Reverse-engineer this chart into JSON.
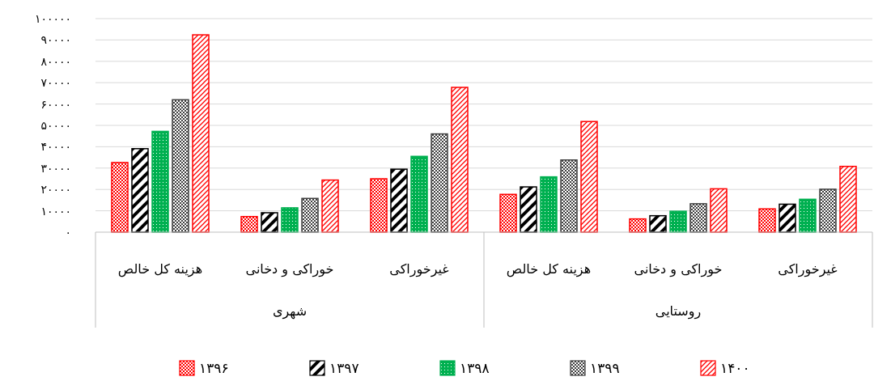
{
  "chart_data": {
    "type": "bar",
    "categories": [
      "هزینه کل خالص",
      "خوراکی و دخانی",
      "غیرخوراکی",
      "هزینه کل خالص",
      "خوراکی و دخانی",
      "غیرخوراکی"
    ],
    "series": [
      {
        "name": "۱۳۹۶",
        "color": "#ff0000",
        "values": [
          32600,
          7300,
          25000,
          17700,
          6200,
          10900
        ]
      },
      {
        "name": "۱۳۹۷",
        "color": "#000000",
        "values": [
          39100,
          9100,
          29500,
          21200,
          7700,
          13100
        ]
      },
      {
        "name": "۱۳۹۸",
        "color": "#00b050",
        "values": [
          47200,
          11400,
          35500,
          25900,
          9800,
          15400
        ]
      },
      {
        "name": "۱۳۹۹",
        "color": "#404040",
        "values": [
          62000,
          15800,
          46000,
          33800,
          13300,
          20100
        ]
      },
      {
        "name": "۱۴۰۰",
        "color": "#ff0000",
        "values": [
          92400,
          24400,
          67800,
          51800,
          20300,
          30800
        ]
      }
    ],
    "ylim": [
      0,
      100000
    ],
    "yticks": [
      {
        "value": 0,
        "label": "۰"
      },
      {
        "value": 10000,
        "label": "۱۰۰۰۰"
      },
      {
        "value": 20000,
        "label": "۲۰۰۰۰"
      },
      {
        "value": 30000,
        "label": "۳۰۰۰۰"
      },
      {
        "value": 40000,
        "label": "۴۰۰۰۰"
      },
      {
        "value": 50000,
        "label": "۵۰۰۰۰"
      },
      {
        "value": 60000,
        "label": "۶۰۰۰۰"
      },
      {
        "value": 70000,
        "label": "۷۰۰۰۰"
      },
      {
        "value": 80000,
        "label": "۸۰۰۰۰"
      },
      {
        "value": 90000,
        "label": "۹۰۰۰۰"
      },
      {
        "value": 100000,
        "label": "۱۰۰۰۰۰"
      }
    ],
    "annotations": [
      "شهری",
      "روستایی"
    ],
    "grid": "y",
    "legend": "bottom"
  }
}
